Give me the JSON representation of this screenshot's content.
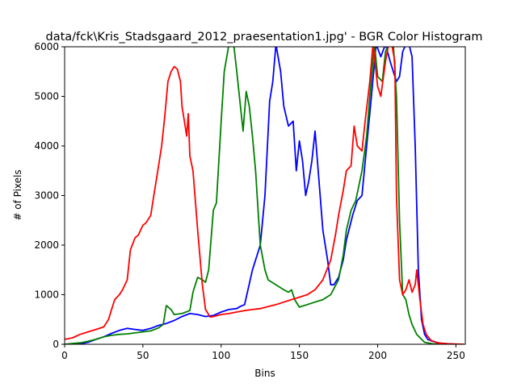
{
  "chart_data": {
    "type": "line",
    "title": "data/fck\\Kris_Stadsgaard_2012_praesentation1.jpg' - BGR Color Histogram",
    "xlabel": "Bins",
    "ylabel": "# of Pixels",
    "xlim": [
      0,
      256
    ],
    "ylim": [
      0,
      6000
    ],
    "xticks": [
      0,
      50,
      100,
      150,
      200,
      250
    ],
    "yticks": [
      0,
      1000,
      2000,
      3000,
      4000,
      5000,
      6000
    ],
    "grid": false,
    "legend": "none",
    "series": [
      {
        "color": "#0000ff",
        "points": [
          [
            0,
            0
          ],
          [
            10,
            10
          ],
          [
            15,
            40
          ],
          [
            20,
            100
          ],
          [
            25,
            150
          ],
          [
            30,
            220
          ],
          [
            35,
            280
          ],
          [
            40,
            320
          ],
          [
            45,
            300
          ],
          [
            50,
            280
          ],
          [
            55,
            320
          ],
          [
            60,
            380
          ],
          [
            65,
            420
          ],
          [
            70,
            480
          ],
          [
            75,
            560
          ],
          [
            80,
            620
          ],
          [
            85,
            600
          ],
          [
            90,
            560
          ],
          [
            95,
            580
          ],
          [
            100,
            650
          ],
          [
            105,
            700
          ],
          [
            110,
            720
          ],
          [
            112,
            760
          ],
          [
            115,
            800
          ],
          [
            120,
            1500
          ],
          [
            125,
            2000
          ],
          [
            128,
            3000
          ],
          [
            131,
            4900
          ],
          [
            133,
            5300
          ],
          [
            135,
            6050
          ],
          [
            138,
            5500
          ],
          [
            140,
            4800
          ],
          [
            143,
            4400
          ],
          [
            146,
            4500
          ],
          [
            148,
            3500
          ],
          [
            150,
            4100
          ],
          [
            152,
            3700
          ],
          [
            154,
            3000
          ],
          [
            156,
            3300
          ],
          [
            158,
            3700
          ],
          [
            160,
            4300
          ],
          [
            162,
            3500
          ],
          [
            165,
            2300
          ],
          [
            168,
            1700
          ],
          [
            170,
            1200
          ],
          [
            172,
            1200
          ],
          [
            175,
            1350
          ],
          [
            178,
            1700
          ],
          [
            180,
            2100
          ],
          [
            184,
            2600
          ],
          [
            187,
            2900
          ],
          [
            190,
            3000
          ],
          [
            193,
            4000
          ],
          [
            196,
            5000
          ],
          [
            199,
            6050
          ],
          [
            202,
            5800
          ],
          [
            205,
            6050
          ],
          [
            208,
            5700
          ],
          [
            210,
            5500
          ],
          [
            212,
            5300
          ],
          [
            214,
            5400
          ],
          [
            216,
            5900
          ],
          [
            218,
            6050
          ],
          [
            220,
            6050
          ],
          [
            222,
            5800
          ],
          [
            224,
            4000
          ],
          [
            226,
            1500
          ],
          [
            228,
            500
          ],
          [
            230,
            200
          ],
          [
            232,
            100
          ],
          [
            235,
            60
          ],
          [
            240,
            20
          ],
          [
            250,
            0
          ],
          [
            255,
            0
          ]
        ]
      },
      {
        "color": "#008000",
        "points": [
          [
            0,
            0
          ],
          [
            10,
            30
          ],
          [
            15,
            60
          ],
          [
            20,
            100
          ],
          [
            25,
            150
          ],
          [
            30,
            180
          ],
          [
            35,
            200
          ],
          [
            40,
            210
          ],
          [
            45,
            230
          ],
          [
            50,
            250
          ],
          [
            55,
            270
          ],
          [
            60,
            330
          ],
          [
            63,
            400
          ],
          [
            65,
            780
          ],
          [
            68,
            700
          ],
          [
            70,
            600
          ],
          [
            75,
            620
          ],
          [
            80,
            680
          ],
          [
            82,
            1050
          ],
          [
            85,
            1350
          ],
          [
            88,
            1300
          ],
          [
            90,
            1250
          ],
          [
            92,
            1500
          ],
          [
            95,
            2700
          ],
          [
            97,
            2850
          ],
          [
            100,
            4500
          ],
          [
            102,
            5500
          ],
          [
            105,
            6050
          ],
          [
            108,
            6050
          ],
          [
            110,
            5500
          ],
          [
            112,
            4900
          ],
          [
            114,
            4300
          ],
          [
            116,
            5100
          ],
          [
            118,
            4800
          ],
          [
            120,
            4200
          ],
          [
            122,
            3500
          ],
          [
            125,
            2000
          ],
          [
            128,
            1500
          ],
          [
            130,
            1300
          ],
          [
            135,
            1200
          ],
          [
            140,
            1100
          ],
          [
            143,
            1050
          ],
          [
            145,
            1100
          ],
          [
            147,
            900
          ],
          [
            150,
            750
          ],
          [
            155,
            800
          ],
          [
            160,
            850
          ],
          [
            165,
            900
          ],
          [
            170,
            1000
          ],
          [
            175,
            1300
          ],
          [
            178,
            1800
          ],
          [
            180,
            2300
          ],
          [
            183,
            2700
          ],
          [
            186,
            2900
          ],
          [
            188,
            3200
          ],
          [
            190,
            3500
          ],
          [
            193,
            4200
          ],
          [
            195,
            5000
          ],
          [
            198,
            6050
          ],
          [
            200,
            5400
          ],
          [
            203,
            5300
          ],
          [
            205,
            5900
          ],
          [
            207,
            6050
          ],
          [
            210,
            6050
          ],
          [
            212,
            5000
          ],
          [
            214,
            2500
          ],
          [
            216,
            1000
          ],
          [
            218,
            900
          ],
          [
            220,
            600
          ],
          [
            222,
            400
          ],
          [
            225,
            200
          ],
          [
            228,
            100
          ],
          [
            230,
            40
          ],
          [
            235,
            10
          ],
          [
            240,
            0
          ],
          [
            255,
            0
          ]
        ]
      },
      {
        "color": "#ff0000",
        "points": [
          [
            0,
            100
          ],
          [
            5,
            130
          ],
          [
            10,
            200
          ],
          [
            15,
            250
          ],
          [
            20,
            300
          ],
          [
            25,
            350
          ],
          [
            28,
            500
          ],
          [
            30,
            700
          ],
          [
            32,
            900
          ],
          [
            35,
            1000
          ],
          [
            37,
            1100
          ],
          [
            40,
            1300
          ],
          [
            42,
            1900
          ],
          [
            45,
            2150
          ],
          [
            47,
            2200
          ],
          [
            50,
            2400
          ],
          [
            52,
            2450
          ],
          [
            55,
            2600
          ],
          [
            57,
            3000
          ],
          [
            60,
            3600
          ],
          [
            62,
            4000
          ],
          [
            64,
            4600
          ],
          [
            66,
            5300
          ],
          [
            68,
            5500
          ],
          [
            70,
            5600
          ],
          [
            72,
            5550
          ],
          [
            74,
            5300
          ],
          [
            75,
            4800
          ],
          [
            77,
            4400
          ],
          [
            78,
            4200
          ],
          [
            79,
            4650
          ],
          [
            80,
            3800
          ],
          [
            82,
            3500
          ],
          [
            85,
            2300
          ],
          [
            88,
            1200
          ],
          [
            90,
            700
          ],
          [
            93,
            550
          ],
          [
            95,
            560
          ],
          [
            100,
            600
          ],
          [
            105,
            620
          ],
          [
            110,
            650
          ],
          [
            115,
            680
          ],
          [
            120,
            700
          ],
          [
            125,
            720
          ],
          [
            130,
            760
          ],
          [
            135,
            800
          ],
          [
            140,
            850
          ],
          [
            145,
            900
          ],
          [
            150,
            950
          ],
          [
            155,
            1000
          ],
          [
            160,
            1100
          ],
          [
            165,
            1300
          ],
          [
            170,
            1700
          ],
          [
            173,
            2200
          ],
          [
            175,
            2600
          ],
          [
            178,
            3100
          ],
          [
            180,
            3500
          ],
          [
            183,
            3600
          ],
          [
            185,
            4400
          ],
          [
            187,
            4000
          ],
          [
            190,
            3900
          ],
          [
            192,
            4500
          ],
          [
            195,
            5300
          ],
          [
            197,
            6050
          ],
          [
            200,
            5200
          ],
          [
            202,
            5000
          ],
          [
            205,
            5700
          ],
          [
            207,
            6050
          ],
          [
            209,
            6050
          ],
          [
            211,
            5700
          ],
          [
            212,
            3000
          ],
          [
            214,
            1300
          ],
          [
            216,
            1000
          ],
          [
            218,
            1100
          ],
          [
            220,
            1300
          ],
          [
            222,
            1050
          ],
          [
            224,
            1200
          ],
          [
            225,
            1500
          ],
          [
            227,
            900
          ],
          [
            229,
            400
          ],
          [
            231,
            200
          ],
          [
            234,
            80
          ],
          [
            238,
            30
          ],
          [
            245,
            10
          ],
          [
            255,
            0
          ]
        ]
      }
    ]
  }
}
